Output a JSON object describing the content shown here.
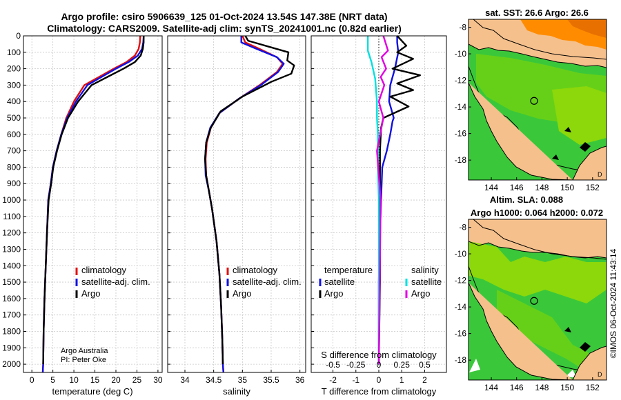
{
  "figure": {
    "title_line1": "Argo profile: csiro 5906639_125 01-Oct-2024 13.54S 147.38E (NRT data)",
    "title_line2": "Climatology: CARS2009. Satellite-adj clim: synTS_20241001.nc (0.82d earlier)",
    "credit_line1": "Argo Australia",
    "credit_line2": "PI: Peter Oke",
    "watermark": "©IMOS 06-Oct-2024 11:43:14"
  },
  "colors": {
    "climatology": "#e01010",
    "satellite": "#1010e0",
    "argo": "#000000",
    "sat_salinity": "#00e0e0",
    "argo_salinity": "#e000e0",
    "grid": "#c8c8c8",
    "land": "#f5c08c",
    "sea_green": "#3ac83a",
    "sea_lime": "#a8e000",
    "sea_orange": "#ff8c00",
    "missing": "#ffffff"
  },
  "chart_data": [
    {
      "type": "line",
      "name": "temperature-panel",
      "xlabel": "temperature (deg C)",
      "ylabel": "",
      "xlim": [
        -2,
        31
      ],
      "ylim": [
        2050,
        0
      ],
      "xticks": [
        0,
        5,
        10,
        15,
        20,
        25,
        30
      ],
      "yticks": [
        0,
        100,
        200,
        300,
        400,
        500,
        600,
        700,
        800,
        900,
        1000,
        1100,
        1200,
        1300,
        1400,
        1500,
        1600,
        1700,
        1800,
        1900,
        2000
      ],
      "legend": [
        "climatology",
        "satellite-adj. clim.",
        "Argo"
      ],
      "series": [
        {
          "name": "climatology",
          "color_key": "climatology",
          "x": [
            25.8,
            25.7,
            25.4,
            24.5,
            22.5,
            19.5,
            16.0,
            12.5,
            10.0,
            8.2,
            7.0,
            5.9,
            5.0,
            4.5,
            3.9,
            3.6,
            3.3,
            3.0,
            2.8,
            2.7,
            2.6
          ],
          "y": [
            0,
            40,
            80,
            120,
            160,
            200,
            250,
            300,
            400,
            500,
            600,
            700,
            800,
            900,
            1000,
            1200,
            1400,
            1600,
            1800,
            2000,
            2050
          ]
        },
        {
          "name": "satellite-adj. clim.",
          "color_key": "satellite",
          "x": [
            26.6,
            26.5,
            26.2,
            25.2,
            23.0,
            20.0,
            16.6,
            13.2,
            10.5,
            8.4,
            7.0,
            5.9,
            5.0,
            4.5,
            3.9,
            3.6,
            3.3,
            3.0,
            2.8,
            2.7,
            2.6
          ],
          "y": [
            0,
            40,
            80,
            120,
            160,
            200,
            250,
            300,
            400,
            500,
            600,
            700,
            800,
            900,
            1000,
            1200,
            1400,
            1600,
            1800,
            2000,
            2050
          ]
        },
        {
          "name": "Argo",
          "color_key": "argo",
          "x": [
            26.6,
            26.6,
            26.4,
            25.9,
            24.5,
            21.8,
            18.0,
            14.2,
            11.0,
            8.6,
            7.1,
            6.0,
            5.1,
            4.6,
            4.0,
            3.6,
            3.3,
            3.0,
            2.8,
            2.7
          ],
          "y": [
            0,
            40,
            80,
            120,
            160,
            200,
            250,
            300,
            400,
            500,
            600,
            700,
            800,
            900,
            1000,
            1200,
            1400,
            1600,
            1800,
            2000
          ]
        }
      ]
    },
    {
      "type": "line",
      "name": "salinity-panel",
      "xlabel": "salinity",
      "ylabel": "",
      "xlim": [
        33.7,
        36.1
      ],
      "ylim": [
        2050,
        0
      ],
      "xticks": [
        34,
        34.5,
        35,
        35.5,
        36
      ],
      "legend": [
        "climatology",
        "satellite-adj. clim.",
        "Argo"
      ],
      "series": [
        {
          "name": "climatology",
          "color_key": "climatology",
          "x": [
            35.0,
            35.05,
            35.3,
            35.6,
            35.7,
            35.6,
            35.3,
            34.95,
            34.6,
            34.45,
            34.38,
            34.36,
            34.37,
            34.42,
            34.47,
            34.55,
            34.6,
            34.63,
            34.65,
            34.66,
            34.67
          ],
          "y": [
            0,
            40,
            80,
            130,
            170,
            220,
            300,
            380,
            470,
            560,
            650,
            750,
            850,
            950,
            1050,
            1250,
            1450,
            1650,
            1850,
            2000,
            2050
          ]
        },
        {
          "name": "satellite-adj. clim.",
          "color_key": "satellite",
          "x": [
            34.98,
            34.98,
            35.25,
            35.6,
            35.72,
            35.62,
            35.32,
            34.95,
            34.6,
            34.44,
            34.37,
            34.35,
            34.36,
            34.42,
            34.47,
            34.55,
            34.6,
            34.63,
            34.65,
            34.66,
            34.67
          ],
          "y": [
            0,
            40,
            80,
            130,
            170,
            220,
            300,
            380,
            470,
            560,
            650,
            750,
            850,
            950,
            1050,
            1250,
            1450,
            1650,
            1850,
            2000,
            2050
          ]
        },
        {
          "name": "Argo",
          "color_key": "argo",
          "x": [
            35.05,
            35.1,
            35.4,
            35.8,
            35.78,
            35.9,
            35.85,
            35.5,
            35.0,
            34.62,
            34.45,
            34.37,
            34.35,
            34.37,
            34.42,
            34.47,
            34.55,
            34.6,
            34.63,
            34.65,
            34.66
          ],
          "y": [
            0,
            30,
            60,
            100,
            150,
            180,
            230,
            280,
            370,
            460,
            560,
            650,
            750,
            850,
            950,
            1050,
            1250,
            1450,
            1650,
            1850,
            2000
          ]
        }
      ]
    },
    {
      "type": "line",
      "name": "difference-panel",
      "xlabel": "T difference from climatology",
      "xlabel_top": "S difference from climatology",
      "xlim": [
        -2.95,
        2.95
      ],
      "xticks": [
        -2,
        -1,
        0,
        1,
        2
      ],
      "s_tick_labels": [
        "-0.5",
        "-0.25",
        "0",
        "0.25",
        "0.5"
      ],
      "ylim": [
        2050,
        0
      ],
      "legend_temperature_title": "temperature",
      "legend_salinity_title": "salinity",
      "legend_labels": [
        "satellite",
        "Argo",
        "satellite",
        "Argo"
      ],
      "series": [
        {
          "name": "temperature satellite",
          "color_key": "satellite",
          "x": [
            0.8,
            0.8,
            0.85,
            0.7,
            0.5,
            0.45,
            0.55,
            0.65,
            0.6,
            0.5,
            0.35,
            0.15,
            0.1,
            0.05,
            0.0,
            0.0
          ],
          "y": [
            0,
            40,
            100,
            200,
            300,
            400,
            450,
            500,
            520,
            600,
            700,
            800,
            1000,
            1200,
            1500,
            2000
          ]
        },
        {
          "name": "temperature Argo",
          "color_key": "argo",
          "x": [
            0.8,
            1.2,
            0.8,
            1.5,
            0.6,
            1.8,
            0.8,
            1.5,
            0.5,
            1.3,
            0.2,
            0.1,
            0.05,
            0.05,
            0.05,
            0.0
          ],
          "y": [
            0,
            60,
            100,
            140,
            200,
            240,
            290,
            330,
            370,
            430,
            500,
            560,
            700,
            1000,
            1500,
            2000
          ]
        },
        {
          "name": "salinity satellite",
          "color_key": "sat_salinity",
          "x": [
            -0.12,
            -0.12,
            -0.08,
            -0.04,
            -0.02,
            -0.02,
            -0.01,
            -0.01,
            0.0,
            0.0,
            0.0
          ],
          "y": [
            0,
            90,
            160,
            260,
            400,
            500,
            600,
            800,
            1000,
            1500,
            2000
          ]
        },
        {
          "name": "salinity Argo",
          "color_key": "argo_salinity",
          "x": [
            0.05,
            0.1,
            0.03,
            0.08,
            0.02,
            0.06,
            0.0,
            0.05,
            -0.02,
            0.02,
            0.0
          ],
          "y": [
            0,
            90,
            130,
            200,
            250,
            300,
            400,
            500,
            700,
            1000,
            2000
          ]
        }
      ]
    },
    {
      "type": "heatmap",
      "name": "sst-map",
      "title": "sat. SST: 26.6 Argo: 26.6",
      "xticks": [
        144,
        146,
        148,
        150,
        152
      ],
      "yticks": [
        -8,
        -10,
        -12,
        -14,
        -16,
        -18
      ],
      "xlim": [
        142.2,
        153.1
      ],
      "ylim": [
        -19.5,
        -7.4
      ],
      "argo_position": [
        147.38,
        -13.54
      ]
    },
    {
      "type": "heatmap",
      "name": "sla-map",
      "title_line1": "Altim. SLA: 0.088",
      "title_line2": "Argo h1000: 0.064 h2000: 0.072",
      "xticks": [
        144,
        146,
        148,
        150,
        152
      ],
      "yticks": [
        -8,
        -10,
        -12,
        -14,
        -16,
        -18
      ],
      "xlim": [
        142.2,
        153.1
      ],
      "ylim": [
        -19.5,
        -7.4
      ],
      "argo_position": [
        147.38,
        -13.54
      ]
    }
  ]
}
